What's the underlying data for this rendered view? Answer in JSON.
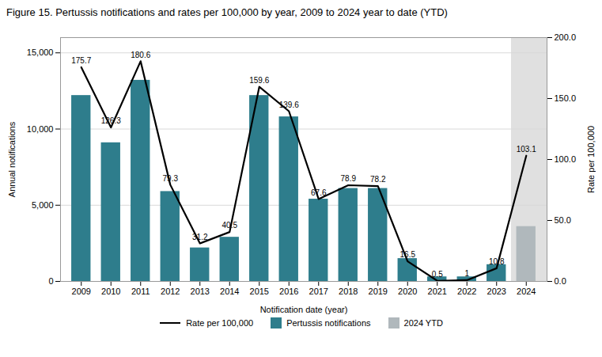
{
  "chart_data": {
    "type": "bar",
    "title": "Figure 15. Pertussis notifications and rates per 100,000 by year, 2009 to 2024 year to date (YTD)",
    "xlabel": "Notification date (year)",
    "ylabel": "Annual notifications",
    "y2label": "Rate per 100,000",
    "x": [
      2009,
      2010,
      2011,
      2012,
      2013,
      2014,
      2015,
      2016,
      2017,
      2018,
      2019,
      2020,
      2021,
      2022,
      2023,
      2024
    ],
    "xlim": [
      2008.3,
      2024.7
    ],
    "xticks": [
      2009,
      2010,
      2011,
      2012,
      2013,
      2014,
      2015,
      2016,
      2017,
      2018,
      2019,
      2020,
      2021,
      2022,
      2023,
      2024
    ],
    "ylim": [
      0,
      16000
    ],
    "yticks": [
      0,
      {
        "value": 5000,
        "label": "5,000"
      },
      {
        "value": 10000,
        "label": "10,000"
      },
      {
        "value": 15000,
        "label": "15,000"
      }
    ],
    "y2lim": [
      0,
      200.0
    ],
    "y2ticks": [
      {
        "value": 0.0,
        "label": "0.0"
      },
      {
        "value": 50.0,
        "label": "50.0"
      },
      {
        "value": 100.0,
        "label": "100.0"
      },
      {
        "value": 150.0,
        "label": "150.0"
      },
      {
        "value": 200.0,
        "label": "200.0"
      }
    ],
    "grid": true,
    "legend": "bottom",
    "data_labels": true,
    "series": [
      {
        "name": "Rate per 100,000",
        "type": "line",
        "axis": "y2",
        "color": "#000000",
        "values": [
          175.7,
          126.3,
          180.6,
          79.3,
          31.2,
          40.5,
          159.6,
          139.6,
          67.6,
          78.9,
          78.2,
          16.5,
          0.5,
          1.0,
          10.8,
          103.1
        ],
        "value_labels": [
          "175.7",
          "126.3",
          "180.6",
          "79.3",
          "31.2",
          "40.5",
          "159.6",
          "139.6",
          "67.6",
          "78.9",
          "78.2",
          "16.5",
          "0.5",
          "1",
          "10.8",
          "103.1"
        ]
      },
      {
        "name": "Pertussis notifications",
        "type": "bar",
        "color": "#2e7d8c",
        "values": [
          12200,
          9100,
          13200,
          5900,
          2200,
          2900,
          12200,
          10800,
          5400,
          6100,
          6100,
          1500,
          300,
          300,
          1100,
          null
        ]
      },
      {
        "name": "2024 YTD",
        "type": "bar",
        "color": "#b0b8bc",
        "values": [
          null,
          null,
          null,
          null,
          null,
          null,
          null,
          null,
          null,
          null,
          null,
          null,
          null,
          null,
          null,
          3600
        ]
      }
    ]
  }
}
